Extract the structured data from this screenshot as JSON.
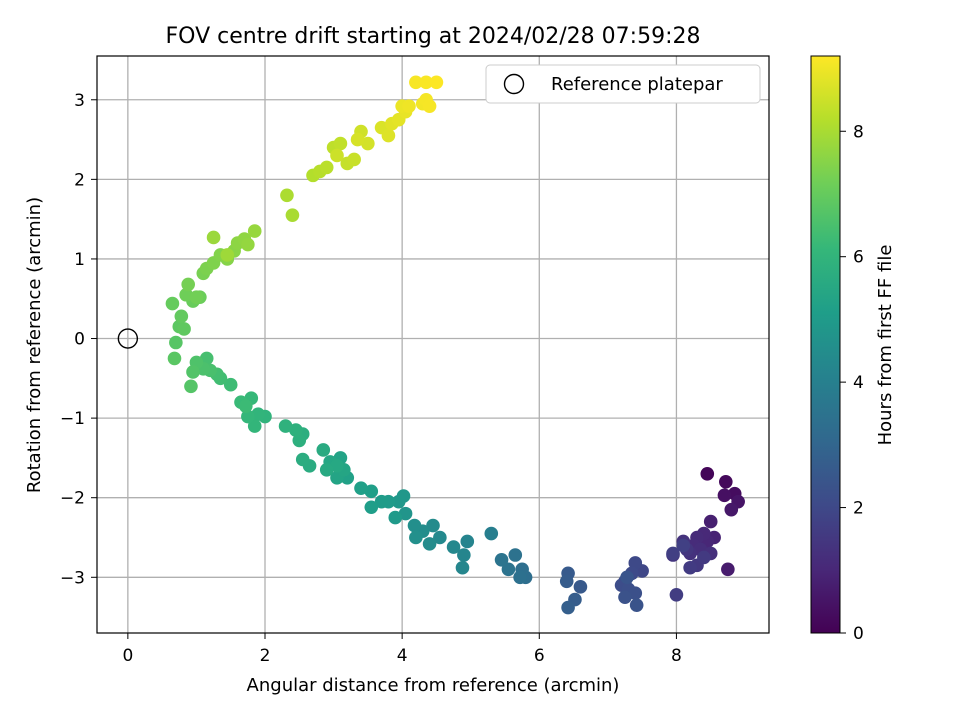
{
  "chart_data": {
    "type": "scatter",
    "title": "FOV centre drift starting at 2024/02/28 07:59:28",
    "xlabel": "Angular distance from reference (arcmin)",
    "ylabel": "Rotation from reference (arcmin)",
    "xlim": [
      -0.45,
      9.35
    ],
    "ylim": [
      -3.7,
      3.55
    ],
    "xticks": [
      0,
      2,
      4,
      6,
      8
    ],
    "yticks": [
      -3,
      -2,
      -1,
      0,
      1,
      2,
      3
    ],
    "grid": true,
    "legend": {
      "position": "top-right",
      "entries": [
        "Reference platepar"
      ]
    },
    "reference_point": {
      "x": 0,
      "y": 0
    },
    "colorbar": {
      "label": "Hours from first FF file",
      "min": 0,
      "max": 9.2,
      "ticks": [
        0,
        2,
        4,
        6,
        8
      ],
      "colormap": [
        "#440154",
        "#482878",
        "#3e4a89",
        "#31688e",
        "#26828e",
        "#1f9e89",
        "#35b779",
        "#6ece58",
        "#b5de2b",
        "#fde725"
      ]
    },
    "points": [
      [
        8.45,
        -1.7,
        0.1
      ],
      [
        8.72,
        -1.8,
        0.2
      ],
      [
        8.85,
        -1.95,
        0.3
      ],
      [
        8.7,
        -1.97,
        0.4
      ],
      [
        8.9,
        -2.05,
        0.5
      ],
      [
        8.8,
        -2.15,
        0.6
      ],
      [
        8.75,
        -2.9,
        0.7
      ],
      [
        8.5,
        -2.3,
        0.8
      ],
      [
        8.55,
        -2.5,
        0.9
      ],
      [
        8.45,
        -2.55,
        1.0
      ],
      [
        8.4,
        -2.45,
        1.05
      ],
      [
        8.3,
        -2.5,
        1.1
      ],
      [
        8.25,
        -2.6,
        1.15
      ],
      [
        8.35,
        -2.65,
        1.2
      ],
      [
        8.5,
        -2.7,
        1.25
      ],
      [
        8.2,
        -2.7,
        1.3
      ],
      [
        8.1,
        -2.55,
        1.35
      ],
      [
        7.95,
        -2.72,
        1.4
      ],
      [
        8.15,
        -2.65,
        1.45
      ],
      [
        8.3,
        -2.85,
        1.5
      ],
      [
        8.4,
        -2.75,
        1.55
      ],
      [
        8.2,
        -2.88,
        1.6
      ],
      [
        8.0,
        -3.22,
        1.65
      ],
      [
        7.95,
        -2.7,
        1.7
      ],
      [
        8.1,
        -2.6,
        1.75
      ],
      [
        7.5,
        -2.92,
        1.95
      ],
      [
        7.4,
        -2.82,
        2.0
      ],
      [
        7.35,
        -2.95,
        2.05
      ],
      [
        7.25,
        -3.05,
        2.1
      ],
      [
        7.2,
        -3.1,
        2.15
      ],
      [
        7.3,
        -3.15,
        2.2
      ],
      [
        7.4,
        -3.2,
        2.25
      ],
      [
        7.25,
        -3.25,
        2.3
      ],
      [
        7.42,
        -3.35,
        2.35
      ],
      [
        7.28,
        -3.0,
        2.4
      ],
      [
        6.6,
        -3.12,
        2.55
      ],
      [
        6.42,
        -2.95,
        2.6
      ],
      [
        6.4,
        -3.05,
        2.65
      ],
      [
        6.52,
        -3.28,
        2.7
      ],
      [
        6.42,
        -3.38,
        2.75
      ],
      [
        5.8,
        -3.0,
        3.3
      ],
      [
        5.75,
        -2.9,
        3.35
      ],
      [
        5.72,
        -3.0,
        3.4
      ],
      [
        5.65,
        -2.72,
        3.45
      ],
      [
        5.55,
        -2.9,
        3.5
      ],
      [
        5.45,
        -2.78,
        3.55
      ],
      [
        5.3,
        -2.45,
        3.95
      ],
      [
        4.95,
        -2.55,
        4.15
      ],
      [
        4.9,
        -2.72,
        4.2
      ],
      [
        4.88,
        -2.88,
        4.25
      ],
      [
        4.75,
        -2.62,
        4.3
      ],
      [
        4.55,
        -2.5,
        4.35
      ],
      [
        4.45,
        -2.35,
        4.4
      ],
      [
        4.4,
        -2.58,
        4.45
      ],
      [
        4.3,
        -2.42,
        4.5
      ],
      [
        4.18,
        -2.35,
        4.55
      ],
      [
        4.2,
        -2.5,
        4.6
      ],
      [
        4.05,
        -2.2,
        4.8
      ],
      [
        4.02,
        -1.98,
        4.85
      ],
      [
        3.95,
        -2.05,
        4.9
      ],
      [
        3.9,
        -2.25,
        4.95
      ],
      [
        3.8,
        -2.05,
        5.0
      ],
      [
        3.7,
        -2.05,
        5.05
      ],
      [
        3.55,
        -2.12,
        5.1
      ],
      [
        3.55,
        -1.92,
        5.15
      ],
      [
        3.4,
        -1.88,
        5.2
      ],
      [
        3.2,
        -1.75,
        5.25
      ],
      [
        3.1,
        -1.5,
        5.3
      ],
      [
        3.05,
        -1.75,
        5.35
      ],
      [
        3.15,
        -1.65,
        5.4
      ],
      [
        2.95,
        -1.55,
        5.45
      ],
      [
        3.05,
        -1.6,
        5.5
      ],
      [
        2.9,
        -1.65,
        5.55
      ],
      [
        2.85,
        -1.4,
        5.6
      ],
      [
        2.65,
        -1.6,
        5.65
      ],
      [
        2.55,
        -1.52,
        5.7
      ],
      [
        2.55,
        -1.2,
        5.75
      ],
      [
        2.5,
        -1.28,
        5.8
      ],
      [
        2.45,
        -1.15,
        5.85
      ],
      [
        2.3,
        -1.1,
        5.9
      ],
      [
        2.0,
        -0.98,
        5.95
      ],
      [
        1.9,
        -0.95,
        6.0
      ],
      [
        1.85,
        -1.1,
        6.05
      ],
      [
        1.75,
        -0.98,
        6.1
      ],
      [
        1.8,
        -0.75,
        6.15
      ],
      [
        1.65,
        -0.8,
        6.2
      ],
      [
        1.72,
        -0.85,
        6.25
      ],
      [
        1.5,
        -0.58,
        6.3
      ],
      [
        1.35,
        -0.5,
        6.35
      ],
      [
        1.3,
        -0.45,
        6.4
      ],
      [
        1.15,
        -0.25,
        6.45
      ],
      [
        1.2,
        -0.4,
        6.5
      ],
      [
        1.1,
        -0.38,
        6.55
      ],
      [
        1.0,
        -0.3,
        6.6
      ],
      [
        0.95,
        -0.42,
        6.65
      ],
      [
        0.92,
        -0.6,
        6.7
      ],
      [
        0.7,
        -0.05,
        6.75
      ],
      [
        0.68,
        -0.25,
        6.8
      ],
      [
        0.75,
        0.15,
        6.85
      ],
      [
        0.82,
        0.12,
        6.9
      ],
      [
        0.78,
        0.28,
        6.95
      ],
      [
        0.65,
        0.44,
        7.0
      ],
      [
        0.95,
        0.47,
        7.05
      ],
      [
        1.05,
        0.52,
        7.1
      ],
      [
        0.85,
        0.55,
        7.15
      ],
      [
        1.0,
        0.52,
        7.2
      ],
      [
        0.88,
        0.68,
        7.25
      ],
      [
        1.1,
        0.82,
        7.3
      ],
      [
        1.15,
        0.88,
        7.35
      ],
      [
        1.25,
        0.95,
        7.4
      ],
      [
        1.35,
        1.05,
        7.45
      ],
      [
        1.45,
        1.0,
        7.5
      ],
      [
        1.55,
        1.1,
        7.55
      ],
      [
        1.6,
        1.2,
        7.6
      ],
      [
        1.7,
        1.25,
        7.65
      ],
      [
        1.75,
        1.18,
        7.7
      ],
      [
        1.85,
        1.35,
        7.75
      ],
      [
        1.25,
        1.27,
        7.8
      ],
      [
        1.45,
        1.05,
        7.85
      ],
      [
        2.4,
        1.55,
        8.0
      ],
      [
        2.32,
        1.8,
        8.05
      ],
      [
        2.7,
        2.05,
        8.15
      ],
      [
        2.8,
        2.1,
        8.2
      ],
      [
        2.9,
        2.15,
        8.25
      ],
      [
        3.0,
        2.4,
        8.3
      ],
      [
        3.1,
        2.45,
        8.35
      ],
      [
        3.2,
        2.2,
        8.4
      ],
      [
        3.3,
        2.25,
        8.45
      ],
      [
        3.05,
        2.3,
        8.5
      ],
      [
        3.4,
        2.6,
        8.55
      ],
      [
        3.5,
        2.45,
        8.6
      ],
      [
        3.35,
        2.5,
        8.65
      ],
      [
        3.7,
        2.65,
        8.7
      ],
      [
        3.8,
        2.55,
        8.75
      ],
      [
        3.85,
        2.7,
        8.8
      ],
      [
        3.95,
        2.75,
        8.85
      ],
      [
        4.05,
        2.85,
        8.9
      ],
      [
        4.0,
        2.92,
        8.95
      ],
      [
        4.1,
        2.92,
        9.0
      ],
      [
        4.3,
        2.95,
        9.05
      ],
      [
        4.35,
        3.0,
        9.08
      ],
      [
        4.4,
        2.92,
        9.1
      ],
      [
        4.2,
        3.22,
        9.12
      ],
      [
        4.35,
        3.22,
        9.15
      ],
      [
        4.5,
        3.22,
        9.18
      ]
    ]
  }
}
